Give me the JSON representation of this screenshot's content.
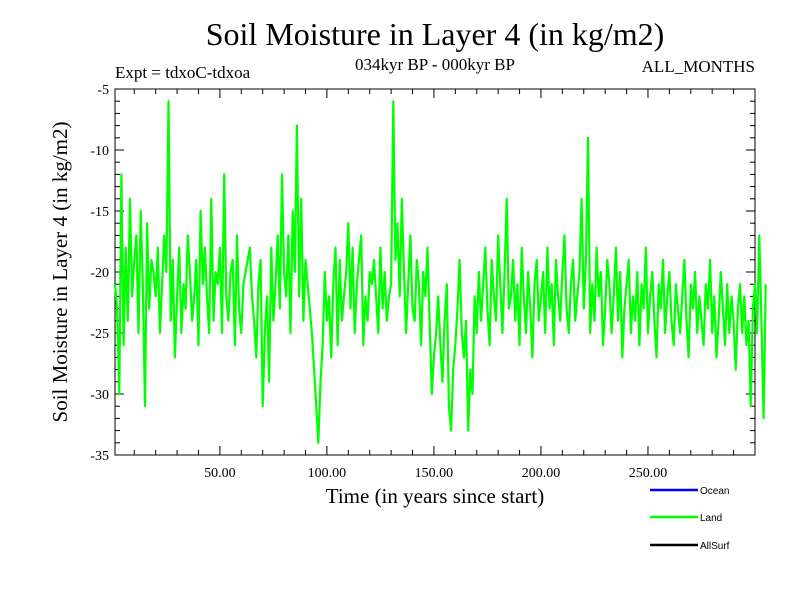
{
  "chart_data": {
    "type": "line",
    "title": "Soil Moisture in Layer 4 (in kg/m2)",
    "subtitle_left": "Expt = tdxoC-tdxoa",
    "subtitle_center": "034kyr BP - 000kyr BP",
    "subtitle_right": "ALL_MONTHS",
    "xlabel": "Time (in years since start)",
    "ylabel": "Soil Moisture in Layer 4 (in kg/m2)",
    "xlim": [
      1,
      300
    ],
    "ylim": [
      -35,
      -5
    ],
    "x_ticks": [
      50,
      100,
      150,
      200,
      250
    ],
    "x_tick_labels": [
      "50.00",
      "100.00",
      "150.00",
      "200.00",
      "250.00"
    ],
    "y_ticks": [
      -35,
      -30,
      -25,
      -20,
      -15,
      -10,
      -5
    ],
    "y_tick_labels": [
      "-35",
      "-30",
      "-25",
      "-20",
      "-15",
      "-10",
      "-5"
    ],
    "legend": {
      "placement": "bottom-right",
      "entries": [
        {
          "name": "Ocean",
          "color": "#0000ff"
        },
        {
          "name": "Land",
          "color": "#00ff00"
        },
        {
          "name": "AllSurf",
          "color": "#000000"
        }
      ]
    },
    "series": [
      {
        "name": "Land",
        "color": "#00ff00",
        "x_start": 1,
        "x_step": 1,
        "values": [
          -21,
          -23,
          -30,
          -12,
          -26,
          -18,
          -24,
          -14,
          -22,
          -19,
          -17,
          -25,
          -15,
          -21,
          -31,
          -16,
          -23,
          -19,
          -20,
          -22,
          -18,
          -25,
          -21,
          -17,
          -20,
          -6,
          -24,
          -19,
          -27,
          -22,
          -18,
          -25,
          -21,
          -23,
          -17,
          -20,
          -24,
          -22,
          -19,
          -26,
          -15,
          -21,
          -18,
          -22,
          -25,
          -14,
          -24,
          -20,
          -21,
          -18,
          -25,
          -12,
          -22,
          -24,
          -20,
          -19,
          -26,
          -17,
          -23,
          -25,
          -21,
          -20,
          -19,
          -18,
          -22,
          -24,
          -27,
          -21,
          -19,
          -31,
          -25,
          -22,
          -29,
          -18,
          -24,
          -21,
          -17,
          -23,
          -12,
          -20,
          -22,
          -17,
          -25,
          -15,
          -20,
          -8,
          -22,
          -14,
          -24,
          -19,
          -21,
          -23,
          -25,
          -28,
          -31,
          -34,
          -29,
          -26,
          -20,
          -24,
          -22,
          -27,
          -21,
          -18,
          -26,
          -19,
          -24,
          -22,
          -20,
          -16,
          -23,
          -18,
          -25,
          -21,
          -19,
          -17,
          -26,
          -22,
          -24,
          -20,
          -21,
          -19,
          -22,
          -25,
          -18,
          -23,
          -20,
          -24,
          -22,
          -21,
          -6,
          -19,
          -16,
          -22,
          -14,
          -20,
          -25,
          -21,
          -17,
          -23,
          -24,
          -19,
          -21,
          -26,
          -20,
          -22,
          -18,
          -24,
          -30,
          -27,
          -25,
          -22,
          -26,
          -29,
          -24,
          -21,
          -31,
          -33,
          -28,
          -26,
          -23,
          -19,
          -25,
          -27,
          -24,
          -33,
          -28,
          -30,
          -22,
          -25,
          -20,
          -24,
          -21,
          -18,
          -23,
          -26,
          -19,
          -22,
          -24,
          -17,
          -21,
          -25,
          -20,
          -14,
          -23,
          -22,
          -19,
          -24,
          -21,
          -26,
          -18,
          -22,
          -25,
          -20,
          -23,
          -27,
          -21,
          -19,
          -24,
          -22,
          -20,
          -25,
          -18,
          -23,
          -21,
          -26,
          -19,
          -22,
          -24,
          -20,
          -17,
          -23,
          -25,
          -21,
          -19,
          -24,
          -22,
          -20,
          -14,
          -23,
          -19,
          -9,
          -25,
          -21,
          -24,
          -18,
          -22,
          -20,
          -26,
          -23,
          -19,
          -21,
          -25,
          -22,
          -18,
          -24,
          -20,
          -27,
          -23,
          -21,
          -19,
          -25,
          -22,
          -24,
          -20,
          -26,
          -21,
          -23,
          -18,
          -25,
          -22,
          -20,
          -24,
          -27,
          -21,
          -23,
          -19,
          -25,
          -22,
          -20,
          -24,
          -26,
          -21,
          -23,
          -25,
          -22,
          -19,
          -24,
          -27,
          -21,
          -23,
          -20,
          -25,
          -22,
          -24,
          -26,
          -21,
          -23,
          -19,
          -25,
          -22,
          -27,
          -24,
          -20,
          -23,
          -26,
          -21,
          -25,
          -22,
          -24,
          -28,
          -23,
          -21,
          -25,
          -22,
          -26,
          -24,
          -31,
          -23,
          -21,
          -25,
          -17,
          -24,
          -32,
          -21
        ]
      }
    ],
    "grid": false
  }
}
